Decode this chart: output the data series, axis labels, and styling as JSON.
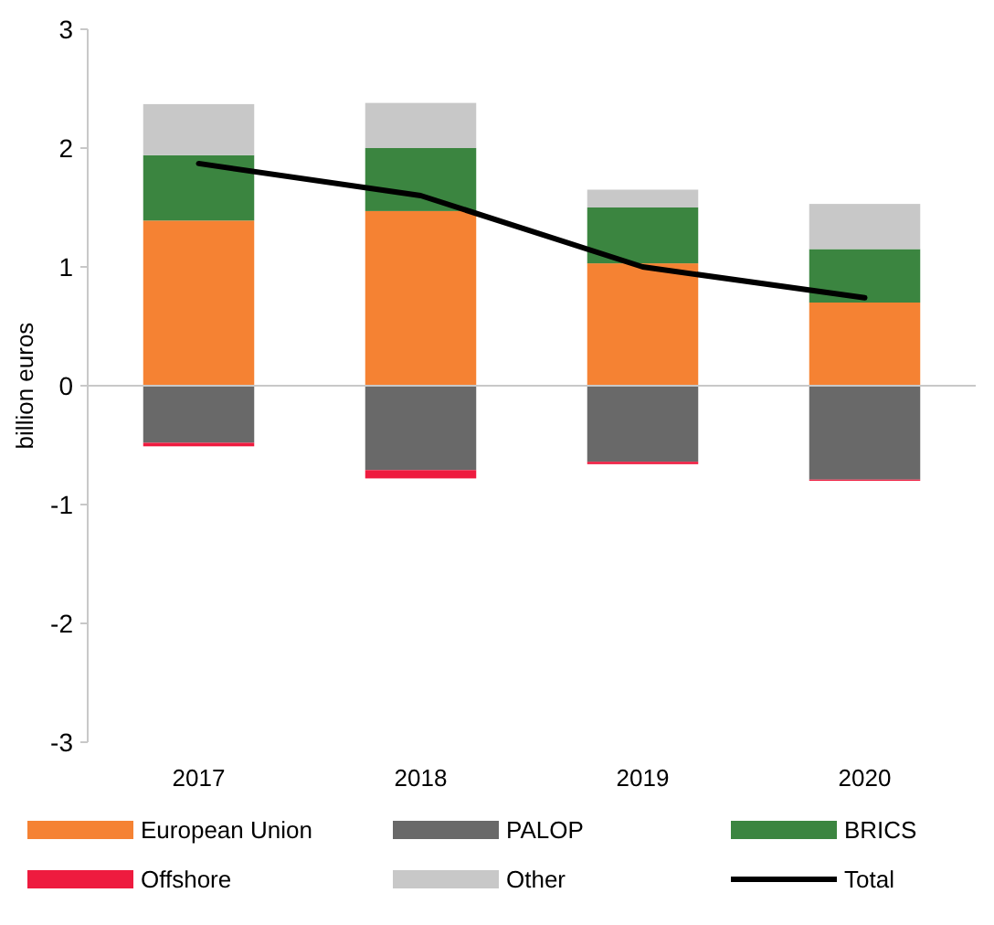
{
  "chart_data": {
    "type": "bar",
    "stacked": true,
    "ylabel": "billion euros",
    "categories": [
      "2017",
      "2018",
      "2019",
      "2020"
    ],
    "series": [
      {
        "name": "European Union",
        "color": "#f58233",
        "values": [
          1.39,
          1.47,
          1.03,
          0.7
        ]
      },
      {
        "name": "PALOP",
        "color": "#696969",
        "values": [
          -0.48,
          -0.71,
          -0.64,
          -0.79
        ]
      },
      {
        "name": "BRICS",
        "color": "#3b8540",
        "values": [
          0.55,
          0.53,
          0.47,
          0.45
        ]
      },
      {
        "name": "Offshore",
        "color": "#ee1b3f",
        "values": [
          -0.03,
          -0.07,
          -0.02,
          -0.01
        ]
      },
      {
        "name": "Other",
        "color": "#c8c8c8",
        "values": [
          0.43,
          0.38,
          0.15,
          0.38
        ]
      },
      {
        "name": "Total",
        "type": "line",
        "color": "#000000",
        "values": [
          1.87,
          1.6,
          1.0,
          0.74
        ]
      }
    ],
    "ylim": [
      -3,
      3
    ],
    "yticks": [
      -3,
      -2,
      -1,
      0,
      1,
      2,
      3
    ],
    "legend": "bottom"
  }
}
